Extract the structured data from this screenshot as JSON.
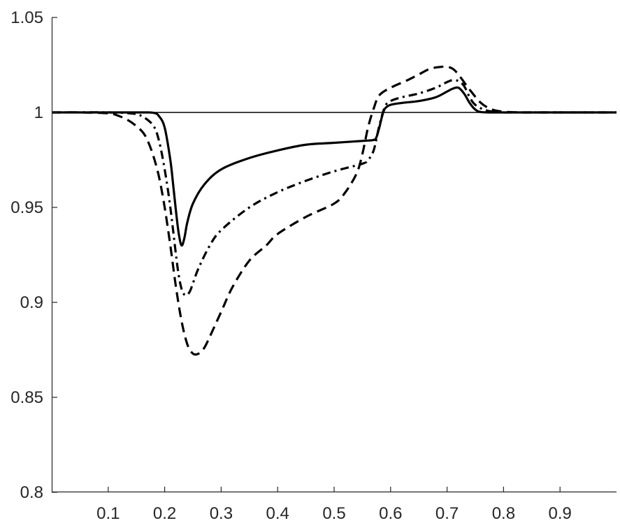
{
  "chart_data": {
    "type": "line",
    "title": "",
    "xlabel": "",
    "ylabel": "",
    "xlim": [
      0,
      1
    ],
    "ylim": [
      0.8,
      1.05
    ],
    "xticks": [
      0.1,
      0.2,
      0.3,
      0.4,
      0.5,
      0.6,
      0.7,
      0.8,
      0.9
    ],
    "xtick_labels": [
      "0.1",
      "0.2",
      "0.3",
      "0.4",
      "0.5",
      "0.6",
      "0.7",
      "0.8",
      "0.9"
    ],
    "yticks": [
      0.8,
      0.85,
      0.9,
      0.95,
      1,
      1.05
    ],
    "ytick_labels": [
      "0.8",
      "0.85",
      "0.9",
      "0.95",
      "1",
      "1.05"
    ],
    "grid": false,
    "reference_line": {
      "y": 1,
      "style": "solid-thin"
    },
    "series": [
      {
        "style": "solid",
        "color": "#000000",
        "x": [
          0,
          0.15,
          0.18,
          0.19,
          0.2,
          0.21,
          0.215,
          0.22,
          0.225,
          0.23,
          0.235,
          0.24,
          0.25,
          0.27,
          0.3,
          0.35,
          0.4,
          0.45,
          0.5,
          0.55,
          0.57,
          0.575,
          0.58,
          0.585,
          0.59,
          0.6,
          0.62,
          0.65,
          0.68,
          0.7,
          0.71,
          0.72,
          0.73,
          0.74,
          0.75,
          0.76,
          0.78,
          0.8,
          1.0
        ],
        "y": [
          1.0,
          1.0,
          0.9998,
          0.998,
          0.992,
          0.975,
          0.962,
          0.948,
          0.936,
          0.93,
          0.934,
          0.942,
          0.952,
          0.962,
          0.97,
          0.976,
          0.98,
          0.983,
          0.984,
          0.985,
          0.9855,
          0.987,
          0.992,
          0.998,
          1.002,
          1.004,
          1.005,
          1.006,
          1.008,
          1.011,
          1.0125,
          1.013,
          1.01,
          1.005,
          1.0015,
          1.0002,
          1.0,
          1.0,
          1.0
        ]
      },
      {
        "style": "dashdot",
        "color": "#000000",
        "x": [
          0,
          0.1,
          0.14,
          0.16,
          0.18,
          0.19,
          0.2,
          0.21,
          0.22,
          0.225,
          0.23,
          0.235,
          0.24,
          0.245,
          0.25,
          0.26,
          0.28,
          0.3,
          0.35,
          0.4,
          0.45,
          0.5,
          0.55,
          0.56,
          0.57,
          0.58,
          0.59,
          0.6,
          0.62,
          0.65,
          0.68,
          0.7,
          0.71,
          0.72,
          0.73,
          0.74,
          0.75,
          0.77,
          0.8,
          0.82,
          1.0
        ],
        "y": [
          1.0,
          1.0,
          0.9995,
          0.998,
          0.993,
          0.985,
          0.97,
          0.95,
          0.925,
          0.914,
          0.907,
          0.904,
          0.904,
          0.906,
          0.91,
          0.918,
          0.93,
          0.938,
          0.95,
          0.958,
          0.964,
          0.969,
          0.973,
          0.975,
          0.98,
          0.993,
          1.003,
          1.006,
          1.008,
          1.01,
          1.013,
          1.016,
          1.017,
          1.0165,
          1.014,
          1.008,
          1.004,
          1.001,
          1.0,
          1.0,
          1.0
        ]
      },
      {
        "style": "dashed",
        "color": "#000000",
        "x": [
          0,
          0.05,
          0.1,
          0.12,
          0.14,
          0.16,
          0.17,
          0.18,
          0.19,
          0.2,
          0.21,
          0.22,
          0.23,
          0.24,
          0.25,
          0.26,
          0.27,
          0.28,
          0.3,
          0.32,
          0.35,
          0.38,
          0.4,
          0.45,
          0.5,
          0.52,
          0.54,
          0.55,
          0.56,
          0.57,
          0.58,
          0.6,
          0.63,
          0.65,
          0.67,
          0.69,
          0.7,
          0.71,
          0.72,
          0.74,
          0.76,
          0.78,
          0.8,
          0.83,
          0.85,
          1.0
        ],
        "y": [
          1.0,
          1.0,
          0.9995,
          0.998,
          0.995,
          0.99,
          0.985,
          0.977,
          0.966,
          0.95,
          0.93,
          0.908,
          0.89,
          0.878,
          0.873,
          0.873,
          0.876,
          0.882,
          0.895,
          0.908,
          0.922,
          0.93,
          0.936,
          0.945,
          0.952,
          0.958,
          0.968,
          0.978,
          0.992,
          1.002,
          1.009,
          1.013,
          1.017,
          1.02,
          1.023,
          1.024,
          1.024,
          1.023,
          1.02,
          1.012,
          1.005,
          1.0015,
          1.0004,
          1.0,
          1.0,
          1.0
        ]
      }
    ]
  }
}
